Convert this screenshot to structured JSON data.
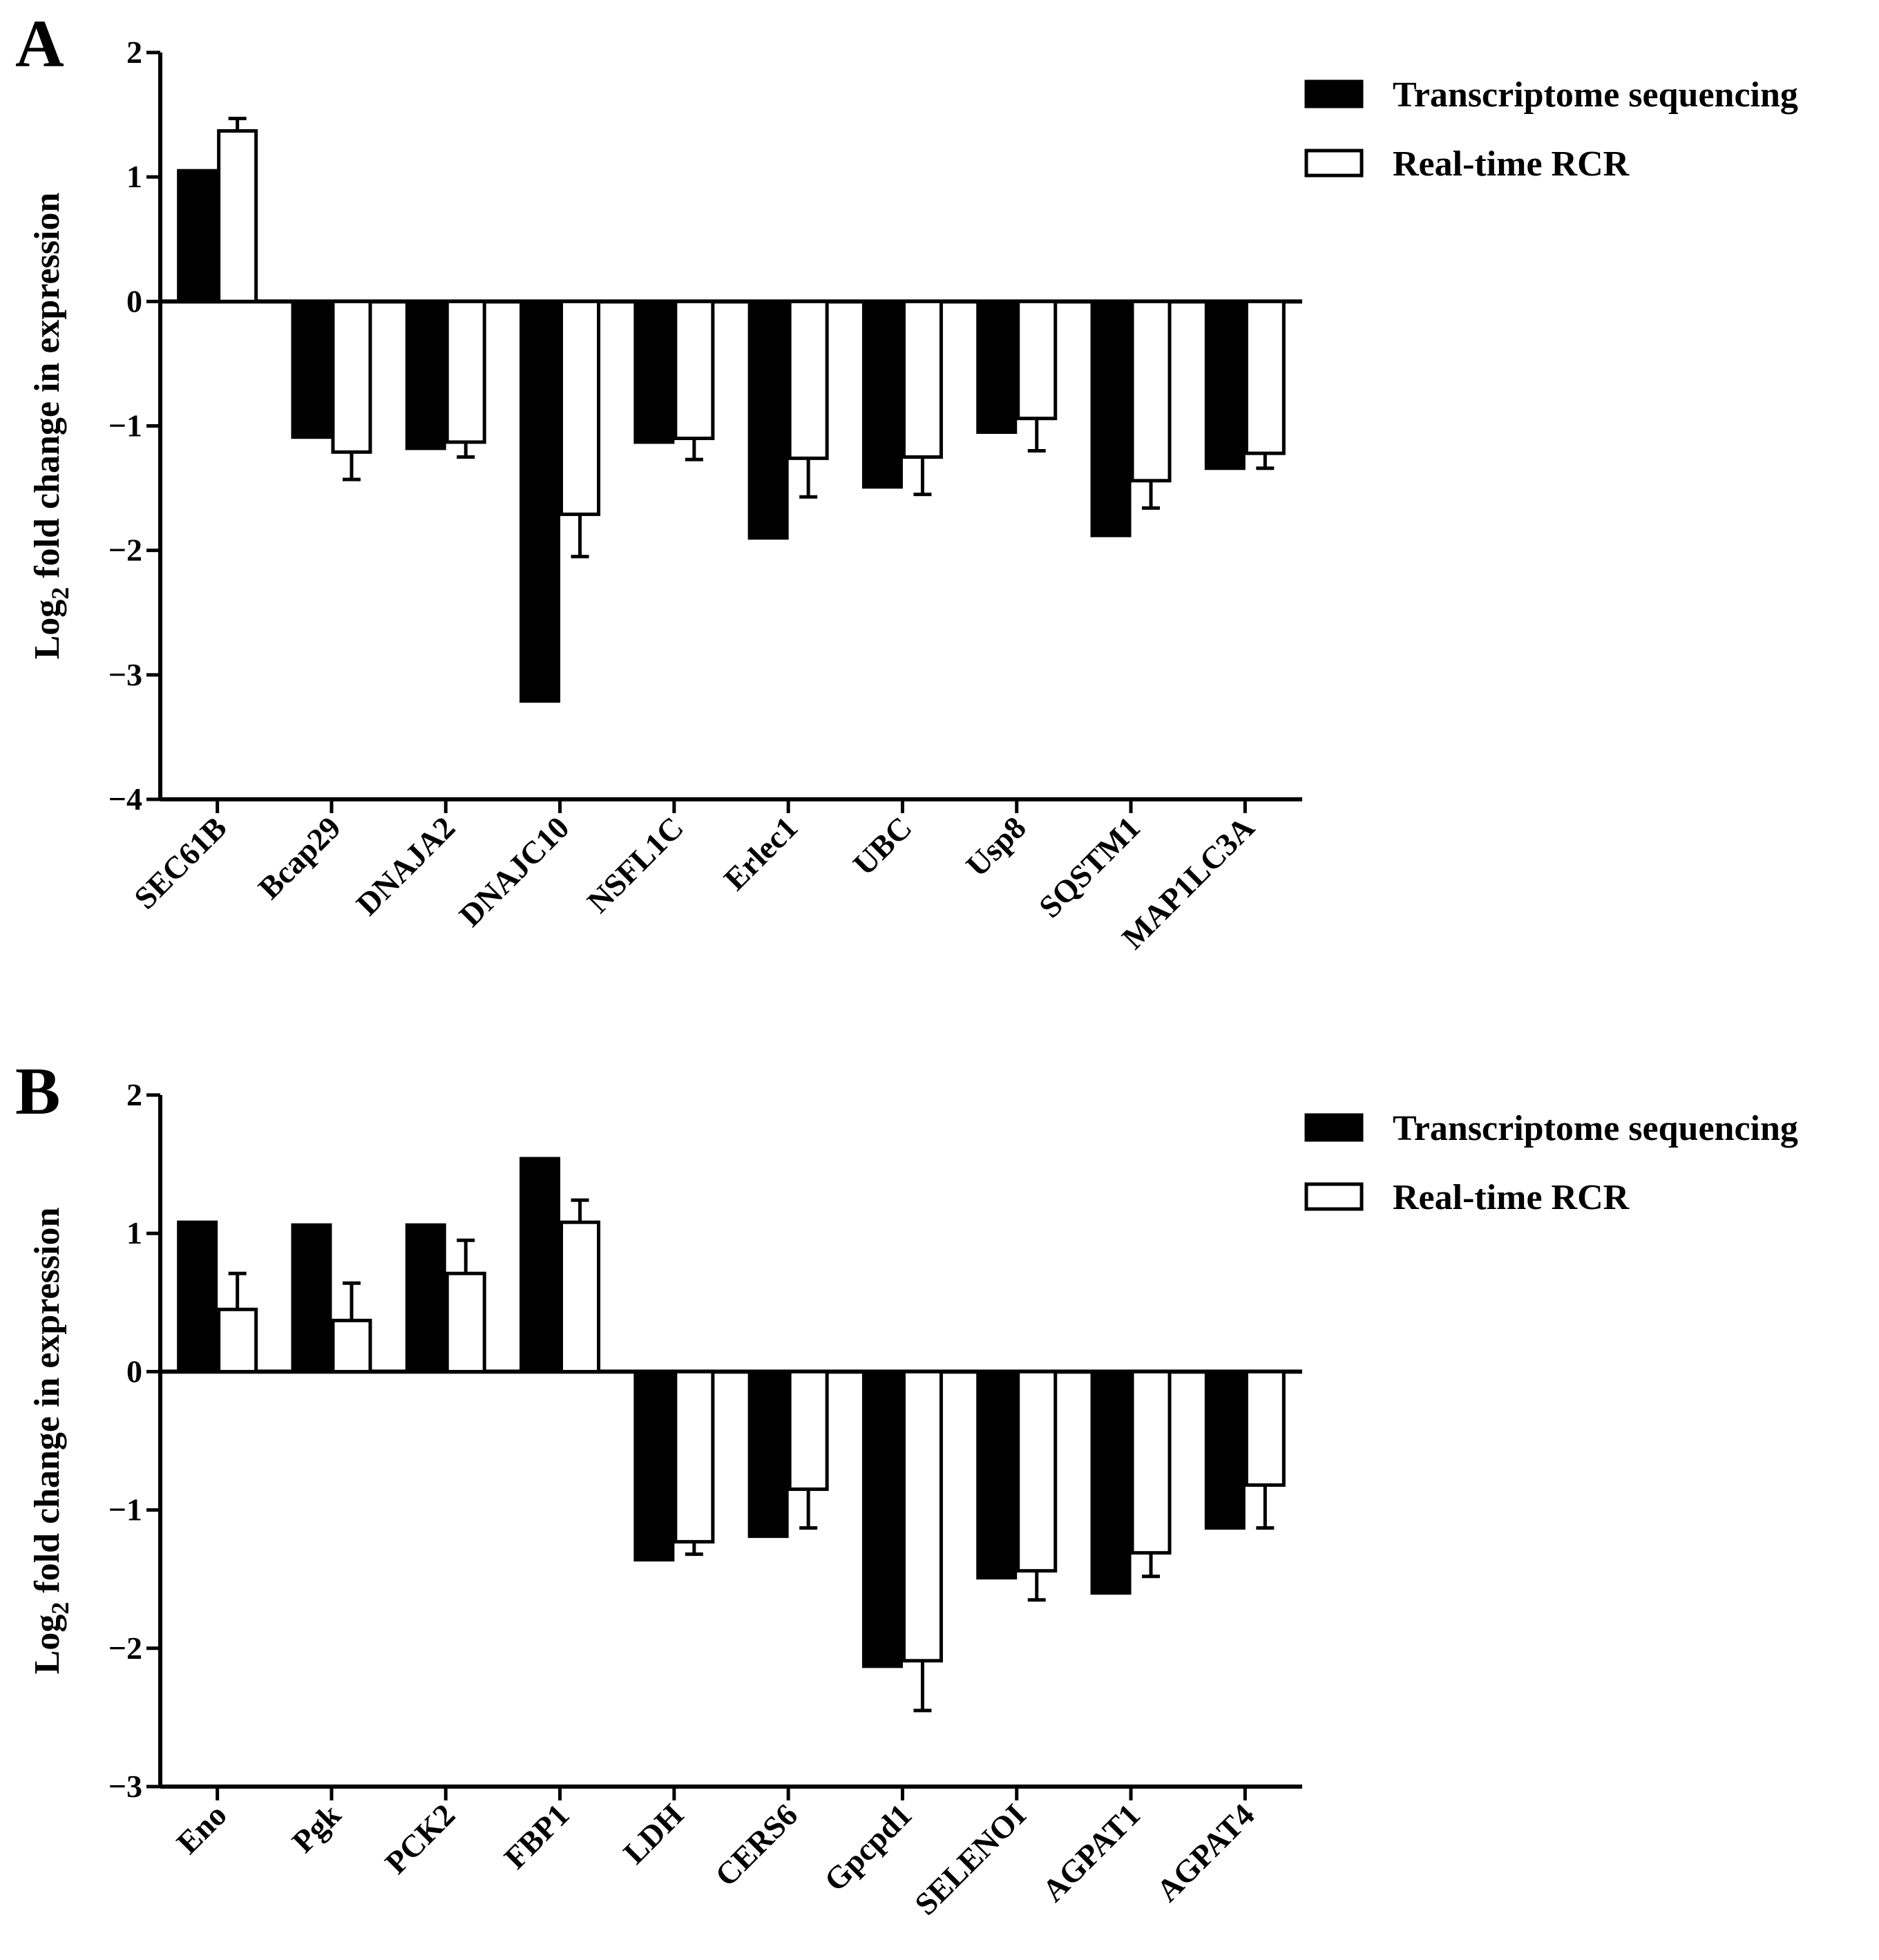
{
  "figure": {
    "legend": {
      "series": [
        {
          "name": "Transcriptome  sequencing",
          "fill": "#000000"
        },
        {
          "name": "Real-time  RCR",
          "fill": "#ffffff"
        }
      ]
    }
  },
  "chart_data": [
    {
      "panel": "A",
      "type": "bar",
      "ylabel_prefix": "Log",
      "ylabel_subscript": "2",
      "ylabel_rest": " fold change in expression",
      "ylim": [
        -4,
        2
      ],
      "yticks": [
        2,
        1,
        0,
        -1,
        -2,
        -3,
        -4
      ],
      "ytick_labels": [
        "2",
        "1",
        "0",
        "−1",
        "−2",
        "−3",
        "−4"
      ],
      "categories": [
        "SEC61B",
        "Bcap29",
        "DNAJA2",
        "DNAJC10",
        "NSFL1C",
        "Erlec1",
        "UBC",
        "Usp8",
        "SQSTM1",
        "MAP1LC3A"
      ],
      "series": [
        {
          "name": "Transcriptome  sequencing",
          "values": [
            1.05,
            -1.09,
            -1.18,
            -3.21,
            -1.13,
            -1.9,
            -1.49,
            -1.05,
            -1.88,
            -1.34
          ]
        },
        {
          "name": "Real-time  RCR",
          "values": [
            1.37,
            -1.21,
            -1.13,
            -1.71,
            -1.1,
            -1.26,
            -1.25,
            -0.94,
            -1.44,
            -1.22
          ],
          "errors": [
            0.1,
            0.22,
            0.12,
            0.34,
            0.17,
            0.31,
            0.3,
            0.26,
            0.22,
            0.12
          ]
        }
      ]
    },
    {
      "panel": "B",
      "type": "bar",
      "ylabel_prefix": "Log",
      "ylabel_subscript": "2",
      "ylabel_rest": " fold change in expression",
      "ylim": [
        -3,
        2
      ],
      "yticks": [
        2,
        1,
        0,
        -1,
        -2,
        -3
      ],
      "ytick_labels": [
        "2",
        "1",
        "0",
        "−1",
        "−2",
        "−3"
      ],
      "categories": [
        "Eno",
        "Pgk",
        "PCK2",
        "FBP1",
        "LDH",
        "CERS6",
        "Gpcpd1",
        "SELENOI",
        "AGPAT1",
        "AGPAT4"
      ],
      "series": [
        {
          "name": "Transcriptome  sequencing",
          "values": [
            1.08,
            1.06,
            1.06,
            1.54,
            -1.36,
            -1.19,
            -2.13,
            -1.49,
            -1.6,
            -1.13
          ]
        },
        {
          "name": "Real-time  RCR",
          "values": [
            0.45,
            0.37,
            0.71,
            1.08,
            -1.23,
            -0.85,
            -2.09,
            -1.44,
            -1.31,
            -0.82
          ],
          "errors": [
            0.26,
            0.27,
            0.24,
            0.16,
            0.09,
            0.28,
            0.36,
            0.21,
            0.17,
            0.31
          ]
        }
      ]
    }
  ]
}
